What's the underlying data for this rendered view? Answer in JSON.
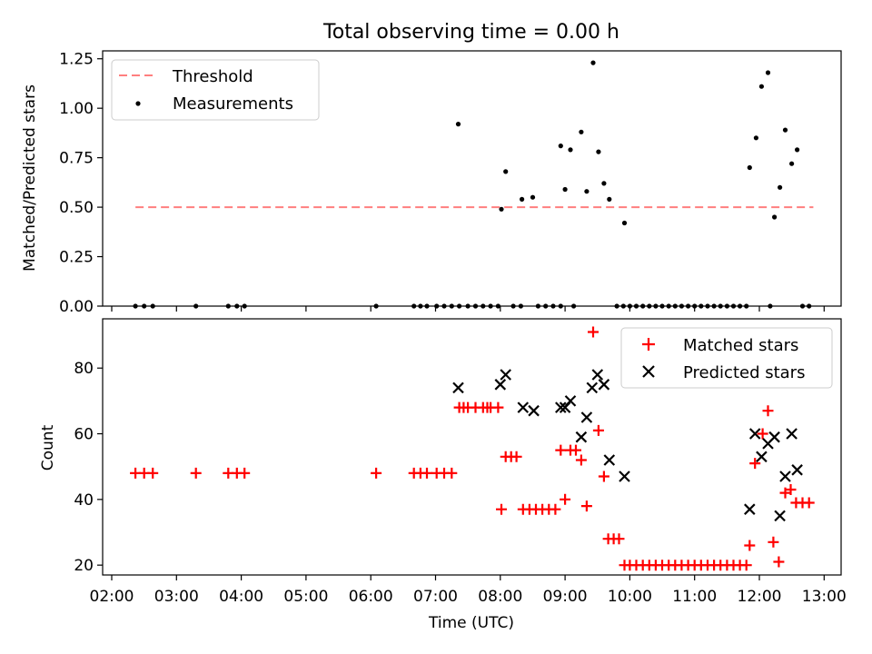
{
  "chart_data": [
    {
      "type": "scatter",
      "title": "Total observing time = 0.00 h",
      "ylabel": "Matched/Predicted stars",
      "xlabel": "",
      "xlim": [
        "02:00",
        "13:00"
      ],
      "ylim": [
        0,
        1.29
      ],
      "yticks": [
        "0.00",
        "0.25",
        "0.50",
        "0.75",
        "1.00",
        "1.25"
      ],
      "xticklabels_visible": false,
      "legend": {
        "position": "top-left",
        "entries": [
          "Threshold",
          "Measurements"
        ]
      },
      "threshold": {
        "name": "Threshold",
        "value": 0.5,
        "x": [
          "02:22",
          "12:50"
        ],
        "color": "#ff7f7f",
        "style": "dashed"
      },
      "series": [
        {
          "name": "Measurements",
          "marker": "dot",
          "color": "#000000",
          "points": [
            [
              "02:22",
              0
            ],
            [
              "02:30",
              0
            ],
            [
              "02:38",
              0
            ],
            [
              "03:18",
              0
            ],
            [
              "03:48",
              0
            ],
            [
              "03:56",
              0
            ],
            [
              "04:03",
              0
            ],
            [
              "06:05",
              0
            ],
            [
              "06:40",
              0
            ],
            [
              "06:46",
              0
            ],
            [
              "06:52",
              0
            ],
            [
              "07:01",
              0
            ],
            [
              "07:08",
              0
            ],
            [
              "07:15",
              0
            ],
            [
              "07:22",
              0
            ],
            [
              "07:30",
              0
            ],
            [
              "07:37",
              0
            ],
            [
              "07:44",
              0
            ],
            [
              "07:51",
              0
            ],
            [
              "07:58",
              0
            ],
            [
              "08:12",
              0
            ],
            [
              "08:19",
              0
            ],
            [
              "08:35",
              0
            ],
            [
              "08:42",
              0
            ],
            [
              "08:49",
              0
            ],
            [
              "08:56",
              0
            ],
            [
              "09:08",
              0
            ],
            [
              "09:48",
              0
            ],
            [
              "09:54",
              0
            ],
            [
              "10:00",
              0
            ],
            [
              "10:06",
              0
            ],
            [
              "10:12",
              0
            ],
            [
              "10:18",
              0
            ],
            [
              "10:24",
              0
            ],
            [
              "10:30",
              0
            ],
            [
              "10:36",
              0
            ],
            [
              "10:42",
              0
            ],
            [
              "10:48",
              0
            ],
            [
              "10:54",
              0
            ],
            [
              "11:00",
              0
            ],
            [
              "11:06",
              0
            ],
            [
              "11:12",
              0
            ],
            [
              "11:18",
              0
            ],
            [
              "11:24",
              0
            ],
            [
              "11:30",
              0
            ],
            [
              "11:36",
              0
            ],
            [
              "11:42",
              0
            ],
            [
              "11:48",
              0
            ],
            [
              "12:10",
              0
            ],
            [
              "12:40",
              0
            ],
            [
              "12:46",
              0
            ],
            [
              "07:21",
              0.92
            ],
            [
              "08:01",
              0.49
            ],
            [
              "08:05",
              0.68
            ],
            [
              "08:20",
              0.54
            ],
            [
              "08:30",
              0.55
            ],
            [
              "08:56",
              0.81
            ],
            [
              "09:00",
              0.59
            ],
            [
              "09:05",
              0.79
            ],
            [
              "09:15",
              0.88
            ],
            [
              "09:20",
              0.58
            ],
            [
              "09:26",
              1.23
            ],
            [
              "09:31",
              0.78
            ],
            [
              "09:36",
              0.62
            ],
            [
              "09:41",
              0.54
            ],
            [
              "09:55",
              0.42
            ],
            [
              "11:51",
              0.7
            ],
            [
              "11:57",
              0.85
            ],
            [
              "12:02",
              1.11
            ],
            [
              "12:08",
              1.18
            ],
            [
              "12:14",
              0.45
            ],
            [
              "12:19",
              0.6
            ],
            [
              "12:24",
              0.89
            ],
            [
              "12:30",
              0.72
            ],
            [
              "12:35",
              0.79
            ]
          ]
        }
      ]
    },
    {
      "type": "scatter",
      "title": "",
      "ylabel": "Count",
      "xlabel": "Time (UTC)",
      "xlim": [
        "02:00",
        "13:00"
      ],
      "ylim": [
        17,
        95
      ],
      "yticks": [
        "20",
        "40",
        "60",
        "80"
      ],
      "xticks": [
        "02:00",
        "03:00",
        "04:00",
        "05:00",
        "06:00",
        "07:00",
        "08:00",
        "09:00",
        "10:00",
        "11:00",
        "12:00",
        "13:00"
      ],
      "legend": {
        "position": "top-right",
        "entries": [
          "Matched stars",
          "Predicted stars"
        ]
      },
      "series": [
        {
          "name": "Matched stars",
          "marker": "plus",
          "color": "#ff0000",
          "points": [
            [
              "02:22",
              48
            ],
            [
              "02:30",
              48
            ],
            [
              "02:38",
              48
            ],
            [
              "03:18",
              48
            ],
            [
              "03:48",
              48
            ],
            [
              "03:56",
              48
            ],
            [
              "04:03",
              48
            ],
            [
              "06:05",
              48
            ],
            [
              "06:40",
              48
            ],
            [
              "06:46",
              48
            ],
            [
              "06:52",
              48
            ],
            [
              "07:01",
              48
            ],
            [
              "07:08",
              48
            ],
            [
              "07:15",
              48
            ],
            [
              "07:22",
              68
            ],
            [
              "07:30",
              68
            ],
            [
              "07:37",
              68
            ],
            [
              "07:44",
              68
            ],
            [
              "07:51",
              68
            ],
            [
              "07:58",
              68
            ],
            [
              "07:48",
              68
            ],
            [
              "07:26",
              68
            ],
            [
              "08:01",
              37
            ],
            [
              "08:05",
              53
            ],
            [
              "08:10",
              53
            ],
            [
              "08:15",
              53
            ],
            [
              "08:21",
              37
            ],
            [
              "08:27",
              37
            ],
            [
              "08:33",
              37
            ],
            [
              "08:39",
              37
            ],
            [
              "08:45",
              37
            ],
            [
              "08:51",
              37
            ],
            [
              "08:56",
              55
            ],
            [
              "09:00",
              40
            ],
            [
              "09:05",
              55
            ],
            [
              "09:10",
              55
            ],
            [
              "09:15",
              52
            ],
            [
              "09:20",
              38
            ],
            [
              "09:26",
              91
            ],
            [
              "09:31",
              61
            ],
            [
              "09:36",
              47
            ],
            [
              "09:40",
              28
            ],
            [
              "09:45",
              28
            ],
            [
              "09:50",
              28
            ],
            [
              "09:55",
              20
            ],
            [
              "10:00",
              20
            ],
            [
              "10:06",
              20
            ],
            [
              "10:12",
              20
            ],
            [
              "10:18",
              20
            ],
            [
              "10:24",
              20
            ],
            [
              "10:30",
              20
            ],
            [
              "10:36",
              20
            ],
            [
              "10:42",
              20
            ],
            [
              "10:48",
              20
            ],
            [
              "10:54",
              20
            ],
            [
              "11:00",
              20
            ],
            [
              "11:06",
              20
            ],
            [
              "11:12",
              20
            ],
            [
              "11:18",
              20
            ],
            [
              "11:24",
              20
            ],
            [
              "11:30",
              20
            ],
            [
              "11:36",
              20
            ],
            [
              "11:42",
              20
            ],
            [
              "11:48",
              20
            ],
            [
              "11:51",
              26
            ],
            [
              "11:56",
              51
            ],
            [
              "12:03",
              60
            ],
            [
              "12:08",
              67
            ],
            [
              "12:13",
              27
            ],
            [
              "12:18",
              21
            ],
            [
              "12:24",
              42
            ],
            [
              "12:29",
              43
            ],
            [
              "12:34",
              39
            ],
            [
              "12:40",
              39
            ],
            [
              "12:46",
              39
            ]
          ]
        },
        {
          "name": "Predicted stars",
          "marker": "x",
          "color": "#000000",
          "points": [
            [
              "07:21",
              74
            ],
            [
              "08:00",
              75
            ],
            [
              "08:05",
              78
            ],
            [
              "08:21",
              68
            ],
            [
              "08:31",
              67
            ],
            [
              "08:56",
              68
            ],
            [
              "09:00",
              68
            ],
            [
              "09:05",
              70
            ],
            [
              "09:15",
              59
            ],
            [
              "09:20",
              65
            ],
            [
              "09:25",
              74
            ],
            [
              "09:30",
              78
            ],
            [
              "09:36",
              75
            ],
            [
              "09:41",
              52
            ],
            [
              "09:55",
              47
            ],
            [
              "11:51",
              37
            ],
            [
              "11:56",
              60
            ],
            [
              "12:02",
              53
            ],
            [
              "12:08",
              57
            ],
            [
              "12:14",
              59
            ],
            [
              "12:19",
              35
            ],
            [
              "12:24",
              47
            ],
            [
              "12:30",
              60
            ],
            [
              "12:35",
              49
            ]
          ]
        }
      ]
    }
  ]
}
